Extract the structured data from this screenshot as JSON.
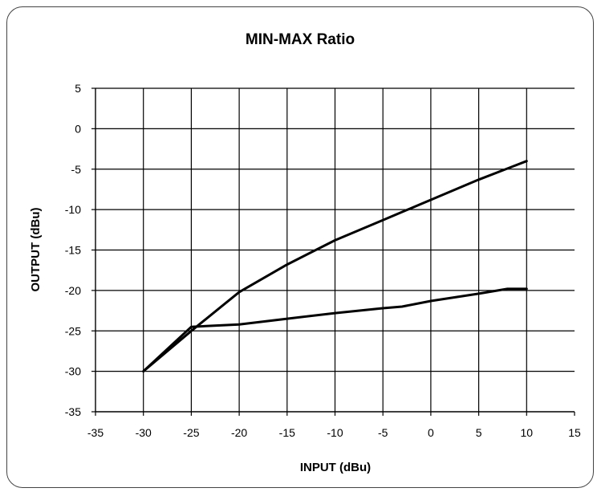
{
  "chart_data": {
    "type": "line",
    "title": "MIN-MAX Ratio",
    "xlabel": "INPUT (dBu)",
    "ylabel": "OUTPUT (dBu)",
    "xlim": [
      -35,
      15
    ],
    "ylim": [
      -35,
      5
    ],
    "x_ticks": [
      "-35",
      "-30",
      "-25",
      "-20",
      "-15",
      "-10",
      "-5",
      "0",
      "5",
      "10",
      "15"
    ],
    "y_ticks": [
      "5",
      "0",
      "-5",
      "-10",
      "-15",
      "-20",
      "-25",
      "-30",
      "-35"
    ],
    "grid": true,
    "legend": "none",
    "line_color": "#000000",
    "series": [
      {
        "x": [
          -30,
          -25,
          -20,
          -15,
          -10,
          -5,
          0,
          5,
          10
        ],
        "values": [
          -30,
          -25,
          -20.2,
          -16.8,
          -13.8,
          -11.3,
          -8.8,
          -6.3,
          -4
        ]
      },
      {
        "x": [
          -30,
          -25,
          -20,
          -15,
          -10,
          -5,
          -3,
          0,
          5,
          8,
          10
        ],
        "values": [
          -30,
          -24.5,
          -24.2,
          -23.5,
          -22.8,
          -22.2,
          -22,
          -21.3,
          -20.4,
          -19.8,
          -19.8
        ]
      }
    ]
  }
}
